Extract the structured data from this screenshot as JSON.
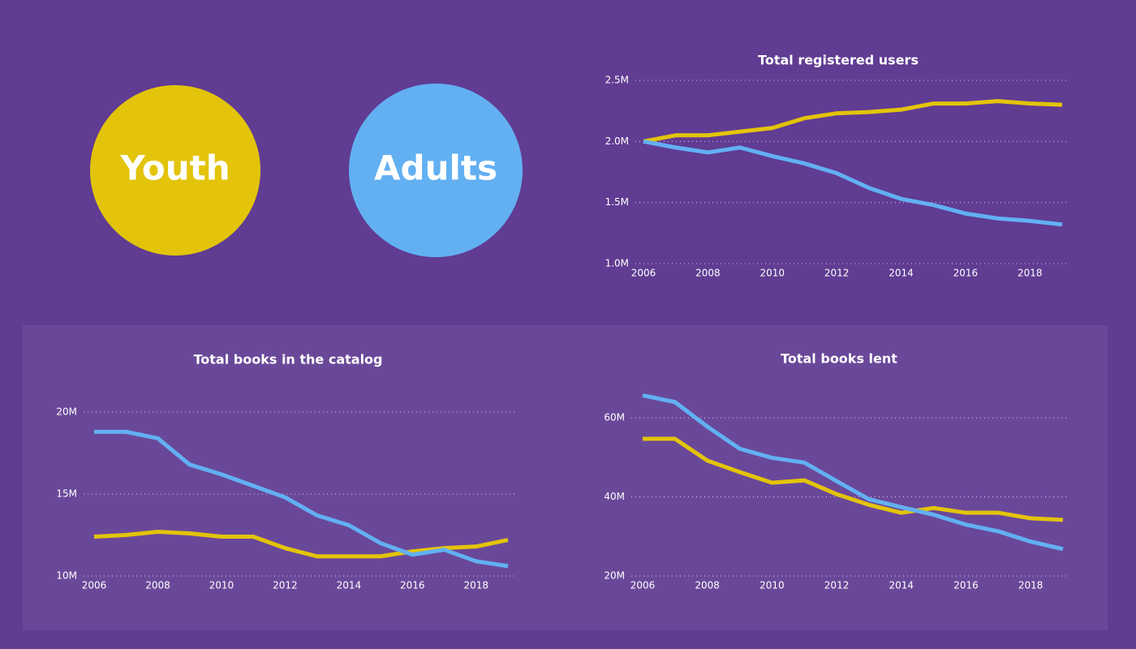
{
  "chart_data": [
    {
      "type": "line",
      "title": "Total registered users",
      "x": [
        2006,
        2007,
        2008,
        2009,
        2010,
        2011,
        2012,
        2013,
        2014,
        2015,
        2016,
        2017,
        2018,
        2019
      ],
      "xlim": [
        2006,
        2019
      ],
      "xticks": [
        2006,
        2008,
        2010,
        2012,
        2014,
        2016,
        2018
      ],
      "ylim": [
        1000000,
        2500000
      ],
      "yticks": [
        {
          "value": 1000000,
          "label": "1.0M"
        },
        {
          "value": 1500000,
          "label": "1.5M"
        },
        {
          "value": 2000000,
          "label": "2.0M"
        },
        {
          "value": 2500000,
          "label": "2.5M"
        }
      ],
      "grid": true,
      "series": [
        {
          "name": "Youth",
          "color": "#e3c40a",
          "values": [
            2000000,
            2050000,
            2050000,
            2080000,
            2110000,
            2190000,
            2230000,
            2240000,
            2260000,
            2310000,
            2310000,
            2330000,
            2310000,
            2300000
          ]
        },
        {
          "name": "Adults",
          "color": "#62b0f2",
          "values": [
            2000000,
            1950000,
            1910000,
            1950000,
            1880000,
            1820000,
            1740000,
            1620000,
            1530000,
            1480000,
            1410000,
            1370000,
            1350000,
            1320000
          ]
        }
      ]
    },
    {
      "type": "line",
      "title": "Total books in the catalog",
      "x": [
        2006,
        2007,
        2008,
        2009,
        2010,
        2011,
        2012,
        2013,
        2014,
        2015,
        2016,
        2017,
        2018,
        2019
      ],
      "xlim": [
        2006,
        2019
      ],
      "xticks": [
        2006,
        2008,
        2010,
        2012,
        2014,
        2016,
        2018
      ],
      "ylim": [
        10000000,
        20000000
      ],
      "yticks": [
        {
          "value": 10000000,
          "label": "10M"
        },
        {
          "value": 15000000,
          "label": "15M"
        },
        {
          "value": 20000000,
          "label": "20M"
        }
      ],
      "grid": true,
      "series": [
        {
          "color": "#e3c40a",
          "values": [
            12400000,
            12500000,
            12700000,
            12600000,
            12400000,
            12400000,
            11700000,
            11200000,
            11200000,
            11200000,
            11500000,
            11700000,
            11800000,
            12200000
          ]
        },
        {
          "color": "#62b0f2",
          "values": [
            18800000,
            18800000,
            18400000,
            16800000,
            16200000,
            15500000,
            14800000,
            13700000,
            13100000,
            12000000,
            11300000,
            11600000,
            10900000,
            10600000
          ]
        }
      ]
    },
    {
      "type": "line",
      "title": "Total books lent",
      "x": [
        2006,
        2007,
        2008,
        2009,
        2010,
        2011,
        2012,
        2013,
        2014,
        2015,
        2016,
        2017,
        2018,
        2019
      ],
      "xlim": [
        2006,
        2019
      ],
      "xticks": [
        2006,
        2008,
        2010,
        2012,
        2014,
        2016,
        2018
      ],
      "ylim": [
        20000000,
        67000000
      ],
      "yticks": [
        {
          "value": 20000000,
          "label": "20M"
        },
        {
          "value": 40000000,
          "label": "40M"
        },
        {
          "value": 60000000,
          "label": "60M"
        }
      ],
      "grid": true,
      "series": [
        {
          "color": "#e3c40a",
          "values": [
            54700000,
            54700000,
            49200000,
            46300000,
            43600000,
            44200000,
            40700000,
            38000000,
            36000000,
            37200000,
            36000000,
            36000000,
            34600000,
            34200000
          ]
        },
        {
          "color": "#62b0f2",
          "values": [
            65700000,
            64000000,
            57800000,
            52200000,
            49900000,
            48700000,
            44000000,
            39400000,
            37400000,
            35500000,
            33000000,
            31300000,
            28700000,
            26800000
          ]
        }
      ]
    }
  ]
}
